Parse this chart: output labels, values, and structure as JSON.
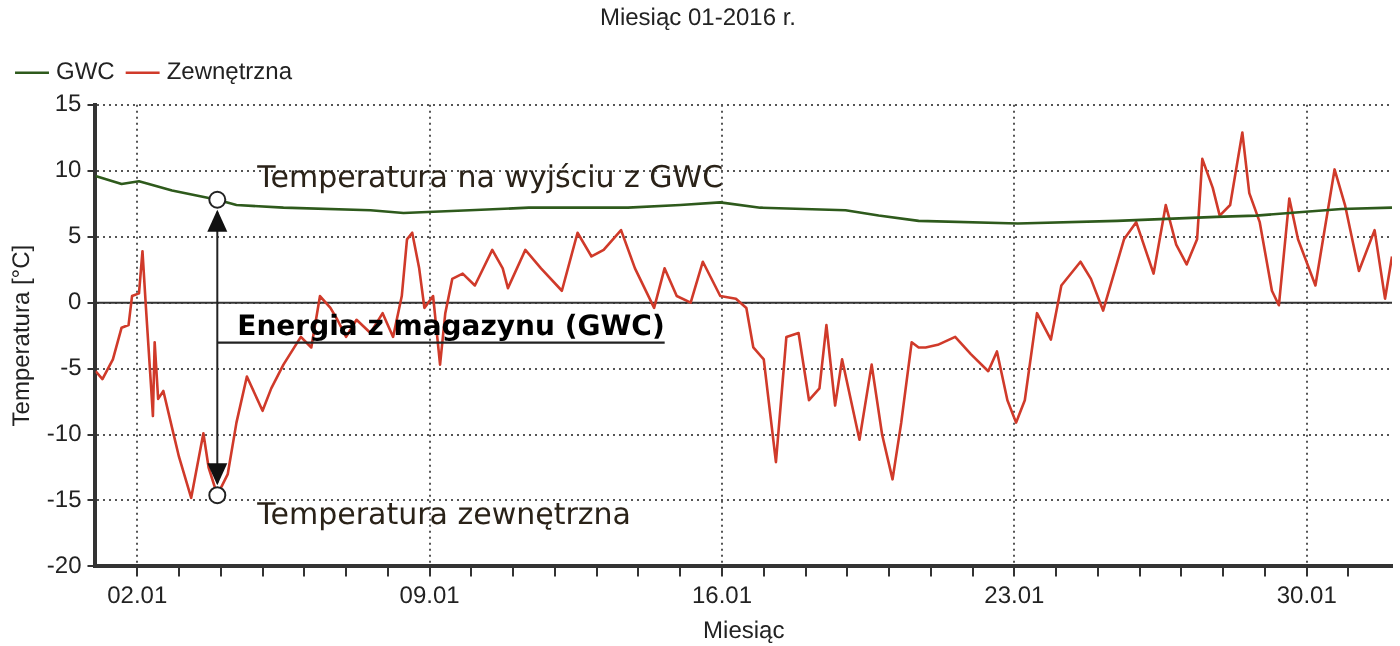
{
  "chart_data": {
    "type": "line",
    "title": "Miesiąc 01-2016 r.",
    "xlabel": "Miesiąc",
    "ylabel": "Temperatura [°C]",
    "xlim": [
      "2016-01-01T00:00",
      "2016-02-01T01:00"
    ],
    "xticks": [
      {
        "value": "2016-01-02",
        "label": "02.01"
      },
      {
        "value": "2016-01-03",
        "label": null
      },
      {
        "value": "2016-01-04",
        "label": null
      },
      {
        "value": "2016-01-05",
        "label": null
      },
      {
        "value": "2016-01-06",
        "label": null
      },
      {
        "value": "2016-01-07",
        "label": null
      },
      {
        "value": "2016-01-08",
        "label": null
      },
      {
        "value": "2016-01-09",
        "label": "09.01"
      },
      {
        "value": "2016-01-10",
        "label": null
      },
      {
        "value": "2016-01-11",
        "label": null
      },
      {
        "value": "2016-01-12",
        "label": null
      },
      {
        "value": "2016-01-13",
        "label": null
      },
      {
        "value": "2016-01-14",
        "label": null
      },
      {
        "value": "2016-01-15",
        "label": null
      },
      {
        "value": "2016-01-16",
        "label": "16.01"
      },
      {
        "value": "2016-01-17",
        "label": null
      },
      {
        "value": "2016-01-18",
        "label": null
      },
      {
        "value": "2016-01-19",
        "label": null
      },
      {
        "value": "2016-01-20",
        "label": null
      },
      {
        "value": "2016-01-21",
        "label": null
      },
      {
        "value": "2016-01-22",
        "label": null
      },
      {
        "value": "2016-01-23",
        "label": "23.01"
      },
      {
        "value": "2016-01-24",
        "label": null
      },
      {
        "value": "2016-01-25",
        "label": null
      },
      {
        "value": "2016-01-26",
        "label": null
      },
      {
        "value": "2016-01-27",
        "label": null
      },
      {
        "value": "2016-01-28",
        "label": null
      },
      {
        "value": "2016-01-29",
        "label": null
      },
      {
        "value": "2016-01-30",
        "label": "30.01"
      },
      {
        "value": "2016-01-31",
        "label": null
      }
    ],
    "ylim": [
      -20,
      15
    ],
    "yticks": [
      -20,
      -15,
      -10,
      -5,
      0,
      5,
      10,
      15
    ],
    "grid": true,
    "legend": "top left",
    "ref_lines": [
      {
        "axis": "y",
        "value": 0,
        "color": "#333333"
      }
    ],
    "annotations": [
      {
        "text": "Temperatura na wyjściu z GWC",
        "x": "2016-01-03T22:00",
        "y": 7.8
      },
      "Energia z magazynu (GWC)",
      {
        "text": "Temperatura zewnętrzna",
        "x": "2016-01-03T22:00",
        "y": -14.6
      }
    ],
    "series": [
      {
        "name": "GWC",
        "color": "#2e5a1c",
        "x": [
          "2016-01-01T00:00",
          "2016-01-01T15:00",
          "2016-01-02T01:00",
          "2016-01-02T20:00",
          "2016-01-03T22:00",
          "2016-01-04T09:00",
          "2016-01-05T12:00",
          "2016-01-07T14:00",
          "2016-01-08T09:00",
          "2016-01-09T23:00",
          "2016-01-11T09:00",
          "2016-01-13T18:00",
          "2016-01-15T00:00",
          "2016-01-15T23:00",
          "2016-01-16T22:00",
          "2016-01-18T23:00",
          "2016-01-19T18:00",
          "2016-01-20T17:00",
          "2016-01-23T02:00",
          "2016-01-25T11:00",
          "2016-01-27T20:00",
          "2016-01-28T19:00",
          "2016-01-29T14:00",
          "2016-01-30T20:00",
          "2016-02-01T01:00"
        ],
        "values": [
          9.6,
          9.0,
          9.2,
          8.5,
          7.8,
          7.4,
          7.2,
          7.0,
          6.8,
          7.0,
          7.2,
          7.2,
          7.4,
          7.6,
          7.2,
          7.0,
          6.6,
          6.2,
          6.0,
          6.2,
          6.5,
          6.6,
          6.8,
          7.1,
          7.2
        ]
      },
      {
        "name": "Zewnętrzna",
        "color": "#d03a2a",
        "x": [
          "2016-01-01T00:00",
          "2016-01-01T04:00",
          "2016-01-01T10:00",
          "2016-01-01T15:00",
          "2016-01-01T19:00",
          "2016-01-01T21:00",
          "2016-01-02T01:00",
          "2016-01-02T03:00",
          "2016-01-02T05:00",
          "2016-01-02T08:00",
          "2016-01-02T09:00",
          "2016-01-02T10:00",
          "2016-01-02T12:00",
          "2016-01-02T15:00",
          "2016-01-02T20:00",
          "2016-01-03T00:00",
          "2016-01-03T07:00",
          "2016-01-03T14:00",
          "2016-01-03T17:00",
          "2016-01-03T22:00",
          "2016-01-04T04:00",
          "2016-01-04T09:00",
          "2016-01-04T15:00",
          "2016-01-05T00:00",
          "2016-01-05T05:00",
          "2016-01-05T12:00",
          "2016-01-05T22:00",
          "2016-01-06T04:00",
          "2016-01-06T09:00",
          "2016-01-06T15:00",
          "2016-01-06T19:00",
          "2016-01-07T00:00",
          "2016-01-07T06:00",
          "2016-01-07T14:00",
          "2016-01-07T21:00",
          "2016-01-08T03:00",
          "2016-01-08T08:00",
          "2016-01-08T11:00",
          "2016-01-08T14:00",
          "2016-01-08T18:00",
          "2016-01-08T21:00",
          "2016-01-09T02:00",
          "2016-01-09T06:00",
          "2016-01-09T09:00",
          "2016-01-09T13:00",
          "2016-01-09T19:00",
          "2016-01-10T02:00",
          "2016-01-10T12:00",
          "2016-01-10T18:00",
          "2016-01-10T21:00",
          "2016-01-11T07:00",
          "2016-01-11T16:00",
          "2016-01-12T04:00",
          "2016-01-12T13:00",
          "2016-01-12T21:00",
          "2016-01-13T04:00",
          "2016-01-13T14:00",
          "2016-01-13T22:00",
          "2016-01-14T09:00",
          "2016-01-14T15:00",
          "2016-01-14T22:00",
          "2016-01-15T06:00",
          "2016-01-15T13:00",
          "2016-01-15T23:00",
          "2016-01-16T08:00",
          "2016-01-16T14:00",
          "2016-01-16T18:00",
          "2016-01-17T00:00",
          "2016-01-17T07:00",
          "2016-01-17T13:00",
          "2016-01-17T20:00",
          "2016-01-18T02:00",
          "2016-01-18T08:00",
          "2016-01-18T12:00",
          "2016-01-18T17:00",
          "2016-01-18T21:00",
          "2016-01-19T07:00",
          "2016-01-19T14:00",
          "2016-01-19T20:00",
          "2016-01-20T02:00",
          "2016-01-20T07:00",
          "2016-01-20T13:00",
          "2016-01-20T17:00",
          "2016-01-20T21:00",
          "2016-01-21T04:00",
          "2016-01-21T14:00",
          "2016-01-21T23:00",
          "2016-01-22T09:00",
          "2016-01-22T14:00",
          "2016-01-22T20:00",
          "2016-01-23T01:00",
          "2016-01-23T06:00",
          "2016-01-23T13:00",
          "2016-01-23T21:00",
          "2016-01-24T03:00",
          "2016-01-24T14:00",
          "2016-01-24T20:00",
          "2016-01-25T03:00",
          "2016-01-25T15:00",
          "2016-01-25T22:00",
          "2016-01-26T08:00",
          "2016-01-26T15:00",
          "2016-01-26T21:00",
          "2016-01-27T03:00",
          "2016-01-27T09:00",
          "2016-01-27T12:00",
          "2016-01-27T18:00",
          "2016-01-27T22:00",
          "2016-01-28T04:00",
          "2016-01-28T11:00",
          "2016-01-28T15:00",
          "2016-01-28T21:00",
          "2016-01-29T04:00",
          "2016-01-29T08:00",
          "2016-01-29T14:00",
          "2016-01-29T19:00",
          "2016-01-30T05:00",
          "2016-01-30T16:00",
          "2016-01-30T22:00",
          "2016-01-31T06:00",
          "2016-01-31T15:00",
          "2016-01-31T21:00",
          "2016-02-01T01:00"
        ],
        "values": [
          -5.2,
          -5.8,
          -4.3,
          -1.9,
          -1.7,
          0.5,
          0.7,
          3.9,
          -0.4,
          -6.5,
          -8.6,
          -3.0,
          -7.3,
          -6.7,
          -9.5,
          -11.7,
          -14.8,
          -9.9,
          -12.5,
          -14.6,
          -13.0,
          -9.1,
          -5.6,
          -8.2,
          -6.5,
          -4.7,
          -2.6,
          -3.4,
          0.5,
          -0.4,
          -1.3,
          -2.6,
          -1.3,
          -2.3,
          -0.8,
          -2.6,
          0.5,
          4.8,
          5.3,
          2.6,
          -0.4,
          0.5,
          -4.7,
          -0.8,
          1.8,
          2.2,
          1.3,
          4.0,
          2.6,
          1.1,
          4.0,
          2.6,
          0.9,
          5.3,
          3.5,
          4.0,
          5.5,
          2.6,
          -0.4,
          2.6,
          0.5,
          0.0,
          3.1,
          0.5,
          0.3,
          -0.4,
          -3.4,
          -4.3,
          -12.1,
          -2.6,
          -2.3,
          -7.4,
          -6.5,
          -1.7,
          -7.8,
          -4.3,
          -10.4,
          -4.7,
          -10.0,
          -13.4,
          -9.1,
          -3.0,
          -3.4,
          -3.4,
          -3.2,
          -2.6,
          -3.9,
          -5.2,
          -3.7,
          -7.4,
          -9.1,
          -7.4,
          -0.8,
          -2.8,
          1.3,
          3.1,
          1.8,
          -0.6,
          4.8,
          6.1,
          2.2,
          7.4,
          4.4,
          2.9,
          4.8,
          10.9,
          8.7,
          6.6,
          7.4,
          12.9,
          8.3,
          6.1,
          0.9,
          -0.2,
          7.9,
          4.8,
          1.3,
          10.1,
          7.4,
          2.4,
          5.5,
          0.3,
          3.5
        ]
      }
    ]
  }
}
